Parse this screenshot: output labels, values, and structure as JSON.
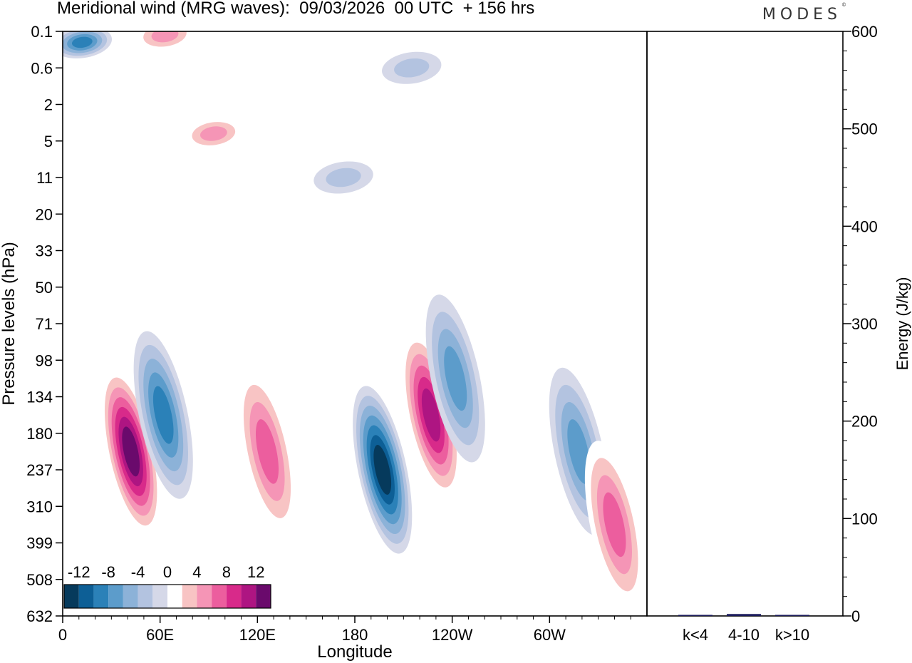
{
  "title": "Meridional wind (MRG waves):  09/03/2026  00 UTC  + 156 hrs",
  "brand": {
    "text": "MODES",
    "mark": "©"
  },
  "chart_data": [
    {
      "type": "heatmap",
      "title": "Meridional wind (MRG waves)",
      "xlabel": "Longitude",
      "ylabel": "Pressure levels (hPa)",
      "x_ticks": [
        "0",
        "60E",
        "120E",
        "180",
        "120W",
        "60W"
      ],
      "x_tick_degrees": [
        0,
        60,
        120,
        180,
        240,
        300
      ],
      "xlim": [
        0,
        360
      ],
      "y_ticks": [
        "0.1",
        "0.6",
        "2",
        "5",
        "11",
        "20",
        "33",
        "50",
        "71",
        "98",
        "134",
        "180",
        "237",
        "310",
        "399",
        "508",
        "632"
      ],
      "colorbar": {
        "tick_labels": [
          "-12",
          "-8",
          "-4",
          "0",
          "4",
          "8",
          "12"
        ],
        "levels": [
          -14,
          -12,
          -10,
          -8,
          -6,
          -4,
          -2,
          2,
          4,
          6,
          8,
          10,
          12,
          14
        ],
        "colors": [
          "#063a5c",
          "#0d5f96",
          "#2b81b8",
          "#5c9ccb",
          "#8cb2d8",
          "#b3c3e0",
          "#d5d8e8",
          "#ffffff",
          "#f8c4c4",
          "#f595b6",
          "#ec5e9e",
          "#d82a8a",
          "#ae1582",
          "#6a0a6c"
        ]
      },
      "features": [
        {
          "name": "neg-upper-left",
          "lon": 12,
          "level_index": 0.3,
          "value": -10
        },
        {
          "name": "pos-upper-60E",
          "lon": 63,
          "level_index": 0.1,
          "value": 6
        },
        {
          "name": "pos-strat-5hPa",
          "lon": 93,
          "level_index": 2.8,
          "value": 6
        },
        {
          "name": "neg-strat-11hPa",
          "lon": 173,
          "level_index": 4.0,
          "value": -4
        },
        {
          "name": "neg-upper-200W",
          "lon": 215,
          "level_index": 1.0,
          "value": -4
        },
        {
          "name": "pos-max-40E",
          "lon": 42,
          "level_index": 11.5,
          "value": 14
        },
        {
          "name": "neg-60E",
          "lon": 62,
          "level_index": 10.5,
          "value": -10
        },
        {
          "name": "pos-120E",
          "lon": 126,
          "level_index": 11.5,
          "value": 8
        },
        {
          "name": "neg-min-180",
          "lon": 197,
          "level_index": 12.0,
          "value": -14
        },
        {
          "name": "pos-165W",
          "lon": 227,
          "level_index": 10.5,
          "value": 12
        },
        {
          "name": "neg-145W",
          "lon": 242,
          "level_index": 9.5,
          "value": -8
        },
        {
          "name": "neg-60W",
          "lon": 318,
          "level_index": 11.5,
          "value": -8
        },
        {
          "name": "pos-40W",
          "lon": 340,
          "level_index": 13.5,
          "value": 8
        }
      ]
    },
    {
      "type": "bar",
      "ylabel": "Energy (J/kg)",
      "categories": [
        "k<4",
        "4-10",
        "k>10"
      ],
      "values": [
        0.5,
        2,
        0.3
      ],
      "ylim": [
        0,
        600
      ],
      "y_ticks": [
        0,
        100,
        200,
        300,
        400,
        500,
        600
      ],
      "bar_color": "#1a1a5a"
    }
  ]
}
